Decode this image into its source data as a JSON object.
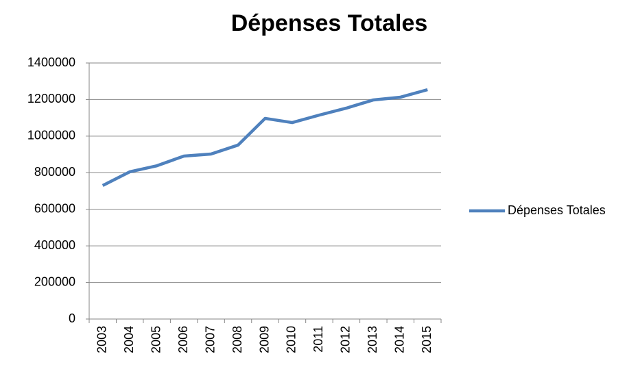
{
  "chart_data": {
    "type": "line",
    "title": "Dépenses Totales",
    "categories": [
      "2003",
      "2004",
      "2005",
      "2006",
      "2007",
      "2008",
      "2009",
      "2010",
      "2011",
      "2012",
      "2013",
      "2014",
      "2015"
    ],
    "series": [
      {
        "name": "Dépenses Totales",
        "color": "#4f81bd",
        "values": [
          730000,
          805000,
          838000,
          891000,
          902000,
          951000,
          1097000,
          1074000,
          1115000,
          1153000,
          1198000,
          1213000,
          1254000
        ]
      }
    ],
    "ylim": [
      0,
      1400000
    ],
    "yticks": [
      0,
      200000,
      400000,
      600000,
      800000,
      1000000,
      1200000,
      1400000
    ],
    "grid": true,
    "legend": "right"
  }
}
